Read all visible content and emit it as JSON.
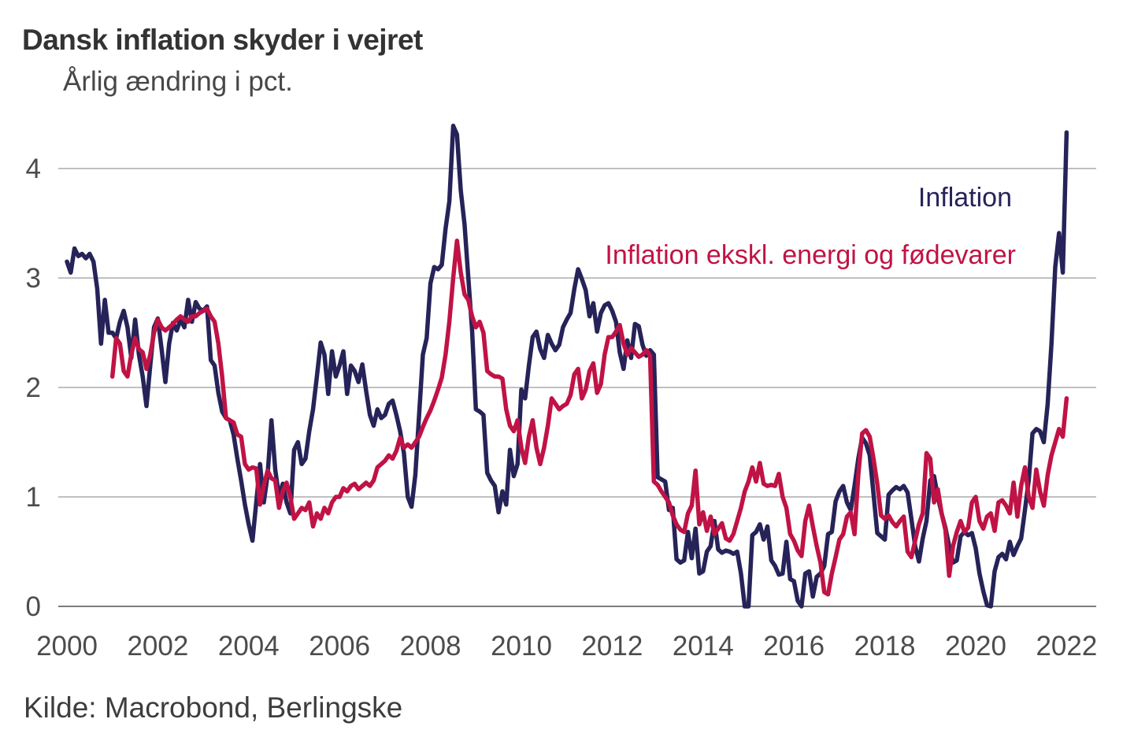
{
  "page": {
    "background": "#ffffff"
  },
  "chart_data": {
    "type": "line",
    "title": "Dansk inflation skyder i vejret",
    "subtitle": "Årlig ændring i pct.",
    "source": "Kilde: Macrobond, Berlingske",
    "x_ticks": [
      2000,
      2002,
      2004,
      2006,
      2008,
      2010,
      2012,
      2014,
      2016,
      2018,
      2020,
      2022
    ],
    "y_ticks": [
      0,
      1,
      2,
      3,
      4
    ],
    "xlim": [
      1999.8,
      2022.6
    ],
    "ylim": [
      0,
      4.55
    ],
    "grid": "horizontal-only",
    "legend_position": "inline-top-right",
    "gridline_color": "#9b9b9b",
    "axis_color": "#7d7d7d",
    "tick_label_color": "#4c4c4c",
    "series": [
      {
        "name": "Inflation",
        "color": "#262359",
        "frequency": "monthly",
        "start_year": 2000,
        "start_month": 1,
        "values": [
          3.15,
          3.05,
          3.27,
          3.2,
          3.22,
          3.18,
          3.22,
          3.15,
          2.9,
          2.4,
          2.8,
          2.5,
          2.5,
          2.45,
          2.6,
          2.7,
          2.55,
          2.27,
          2.62,
          2.3,
          2.1,
          1.83,
          2.2,
          2.55,
          2.63,
          2.35,
          2.05,
          2.4,
          2.59,
          2.52,
          2.62,
          2.55,
          2.8,
          2.6,
          2.78,
          2.72,
          2.7,
          2.74,
          2.25,
          2.2,
          1.95,
          1.78,
          1.72,
          1.7,
          1.57,
          1.35,
          1.15,
          0.93,
          0.75,
          0.6,
          0.95,
          1.3,
          0.95,
          1.2,
          1.7,
          1.25,
          1.0,
          1.12,
          0.95,
          0.85,
          1.43,
          1.5,
          1.3,
          1.35,
          1.6,
          1.8,
          2.1,
          2.41,
          2.3,
          1.94,
          2.33,
          2.1,
          2.2,
          2.33,
          1.94,
          2.2,
          2.15,
          2.05,
          2.21,
          1.97,
          1.75,
          1.65,
          1.8,
          1.72,
          1.75,
          1.85,
          1.88,
          1.75,
          1.6,
          1.4,
          1.0,
          0.91,
          1.2,
          1.75,
          2.3,
          2.45,
          2.95,
          3.1,
          3.08,
          3.12,
          3.45,
          3.7,
          4.39,
          4.31,
          3.8,
          3.49,
          3.0,
          2.52,
          1.8,
          1.78,
          1.75,
          1.22,
          1.15,
          1.1,
          0.86,
          1.05,
          0.93,
          1.43,
          1.19,
          1.3,
          1.98,
          1.9,
          2.2,
          2.46,
          2.51,
          2.35,
          2.27,
          2.48,
          2.4,
          2.34,
          2.39,
          2.55,
          2.62,
          2.68,
          2.9,
          3.08,
          2.99,
          2.89,
          2.65,
          2.77,
          2.51,
          2.68,
          2.75,
          2.77,
          2.7,
          2.6,
          2.32,
          2.17,
          2.43,
          2.27,
          2.58,
          2.56,
          2.39,
          2.29,
          2.34,
          2.3,
          1.18,
          1.16,
          1.14,
          0.88,
          0.9,
          0.43,
          0.4,
          0.42,
          0.68,
          0.44,
          0.71,
          0.3,
          0.32,
          0.5,
          0.55,
          0.78,
          0.52,
          0.49,
          0.51,
          0.5,
          0.48,
          0.5,
          0.3,
          0.0,
          0.0,
          0.65,
          0.68,
          0.75,
          0.61,
          0.73,
          0.42,
          0.37,
          0.29,
          0.3,
          0.59,
          0.25,
          0.23,
          0.05,
          0.0,
          0.3,
          0.32,
          0.09,
          0.27,
          0.3,
          0.37,
          0.66,
          0.68,
          0.96,
          1.05,
          1.1,
          0.95,
          0.88,
          1.1,
          1.35,
          1.54,
          1.49,
          1.38,
          1.03,
          0.67,
          0.64,
          0.61,
          1.02,
          1.06,
          1.09,
          1.07,
          1.1,
          1.04,
          0.8,
          0.55,
          0.41,
          0.62,
          0.78,
          1.15,
          1.19,
          1.0,
          0.85,
          0.72,
          0.55,
          0.4,
          0.42,
          0.64,
          0.68,
          0.65,
          0.67,
          0.53,
          0.3,
          0.14,
          0.01,
          0.0,
          0.32,
          0.45,
          0.48,
          0.43,
          0.59,
          0.47,
          0.55,
          0.62,
          0.88,
          1.15,
          1.58,
          1.62,
          1.6,
          1.5,
          1.85,
          2.4,
          3.1,
          3.41,
          3.05,
          4.33
        ]
      },
      {
        "name": "Inflation ekskl. energi og fødevarer",
        "color": "#c01345",
        "frequency": "monthly",
        "start_year": 2001,
        "start_month": 1,
        "values": [
          2.1,
          2.45,
          2.4,
          2.15,
          2.1,
          2.3,
          2.45,
          2.35,
          2.32,
          2.17,
          2.3,
          2.5,
          2.62,
          2.55,
          2.52,
          2.55,
          2.58,
          2.62,
          2.65,
          2.62,
          2.6,
          2.65,
          2.65,
          2.68,
          2.7,
          2.72,
          2.65,
          2.6,
          2.4,
          2.1,
          1.72,
          1.7,
          1.68,
          1.57,
          1.55,
          1.3,
          1.25,
          1.27,
          1.26,
          0.93,
          1.1,
          1.24,
          1.17,
          1.15,
          0.9,
          1.05,
          1.13,
          1.0,
          0.8,
          0.85,
          0.9,
          0.88,
          0.95,
          0.73,
          0.85,
          0.8,
          0.9,
          0.85,
          0.95,
          1.0,
          1.0,
          1.08,
          1.05,
          1.1,
          1.12,
          1.07,
          1.1,
          1.13,
          1.1,
          1.15,
          1.27,
          1.3,
          1.33,
          1.38,
          1.35,
          1.42,
          1.54,
          1.45,
          1.48,
          1.45,
          1.5,
          1.55,
          1.64,
          1.72,
          1.79,
          1.88,
          1.98,
          2.09,
          2.3,
          2.6,
          3.0,
          3.34,
          3.05,
          2.85,
          2.8,
          2.65,
          2.55,
          2.6,
          2.5,
          2.15,
          2.12,
          2.1,
          2.1,
          2.08,
          1.8,
          1.65,
          1.6,
          1.7,
          1.45,
          1.31,
          1.55,
          1.7,
          1.45,
          1.3,
          1.45,
          1.65,
          1.9,
          1.85,
          1.8,
          1.83,
          1.85,
          1.93,
          2.12,
          2.17,
          1.9,
          1.98,
          2.15,
          2.22,
          1.95,
          2.03,
          2.3,
          2.46,
          2.46,
          2.51,
          2.57,
          2.4,
          2.3,
          2.36,
          2.32,
          2.28,
          2.3,
          2.34,
          2.29,
          1.14,
          1.11,
          1.05,
          1.0,
          0.95,
          0.83,
          0.75,
          0.7,
          0.68,
          0.85,
          0.92,
          1.24,
          0.75,
          0.86,
          0.69,
          0.82,
          0.66,
          0.71,
          0.76,
          0.62,
          0.6,
          0.66,
          0.78,
          0.9,
          1.05,
          1.14,
          1.27,
          1.14,
          1.31,
          1.12,
          1.1,
          1.11,
          1.1,
          1.21,
          1.0,
          0.9,
          0.66,
          0.6,
          0.51,
          0.46,
          0.78,
          0.92,
          0.73,
          0.55,
          0.4,
          0.13,
          0.11,
          0.3,
          0.45,
          0.61,
          0.66,
          0.82,
          0.86,
          0.66,
          1.2,
          1.58,
          1.61,
          1.55,
          1.35,
          1.12,
          0.83,
          0.8,
          0.83,
          0.77,
          0.73,
          0.78,
          0.82,
          0.5,
          0.45,
          0.6,
          0.75,
          0.85,
          1.4,
          1.35,
          0.95,
          1.07,
          0.85,
          0.7,
          0.28,
          0.55,
          0.68,
          0.78,
          0.68,
          0.72,
          0.95,
          1.0,
          0.78,
          0.71,
          0.82,
          0.85,
          0.69,
          0.95,
          0.97,
          0.92,
          0.85,
          1.13,
          0.82,
          1.1,
          1.27,
          1.0,
          0.9,
          1.25,
          1.05,
          0.92,
          1.2,
          1.38,
          1.5,
          1.62,
          1.55,
          1.9
        ]
      }
    ]
  }
}
